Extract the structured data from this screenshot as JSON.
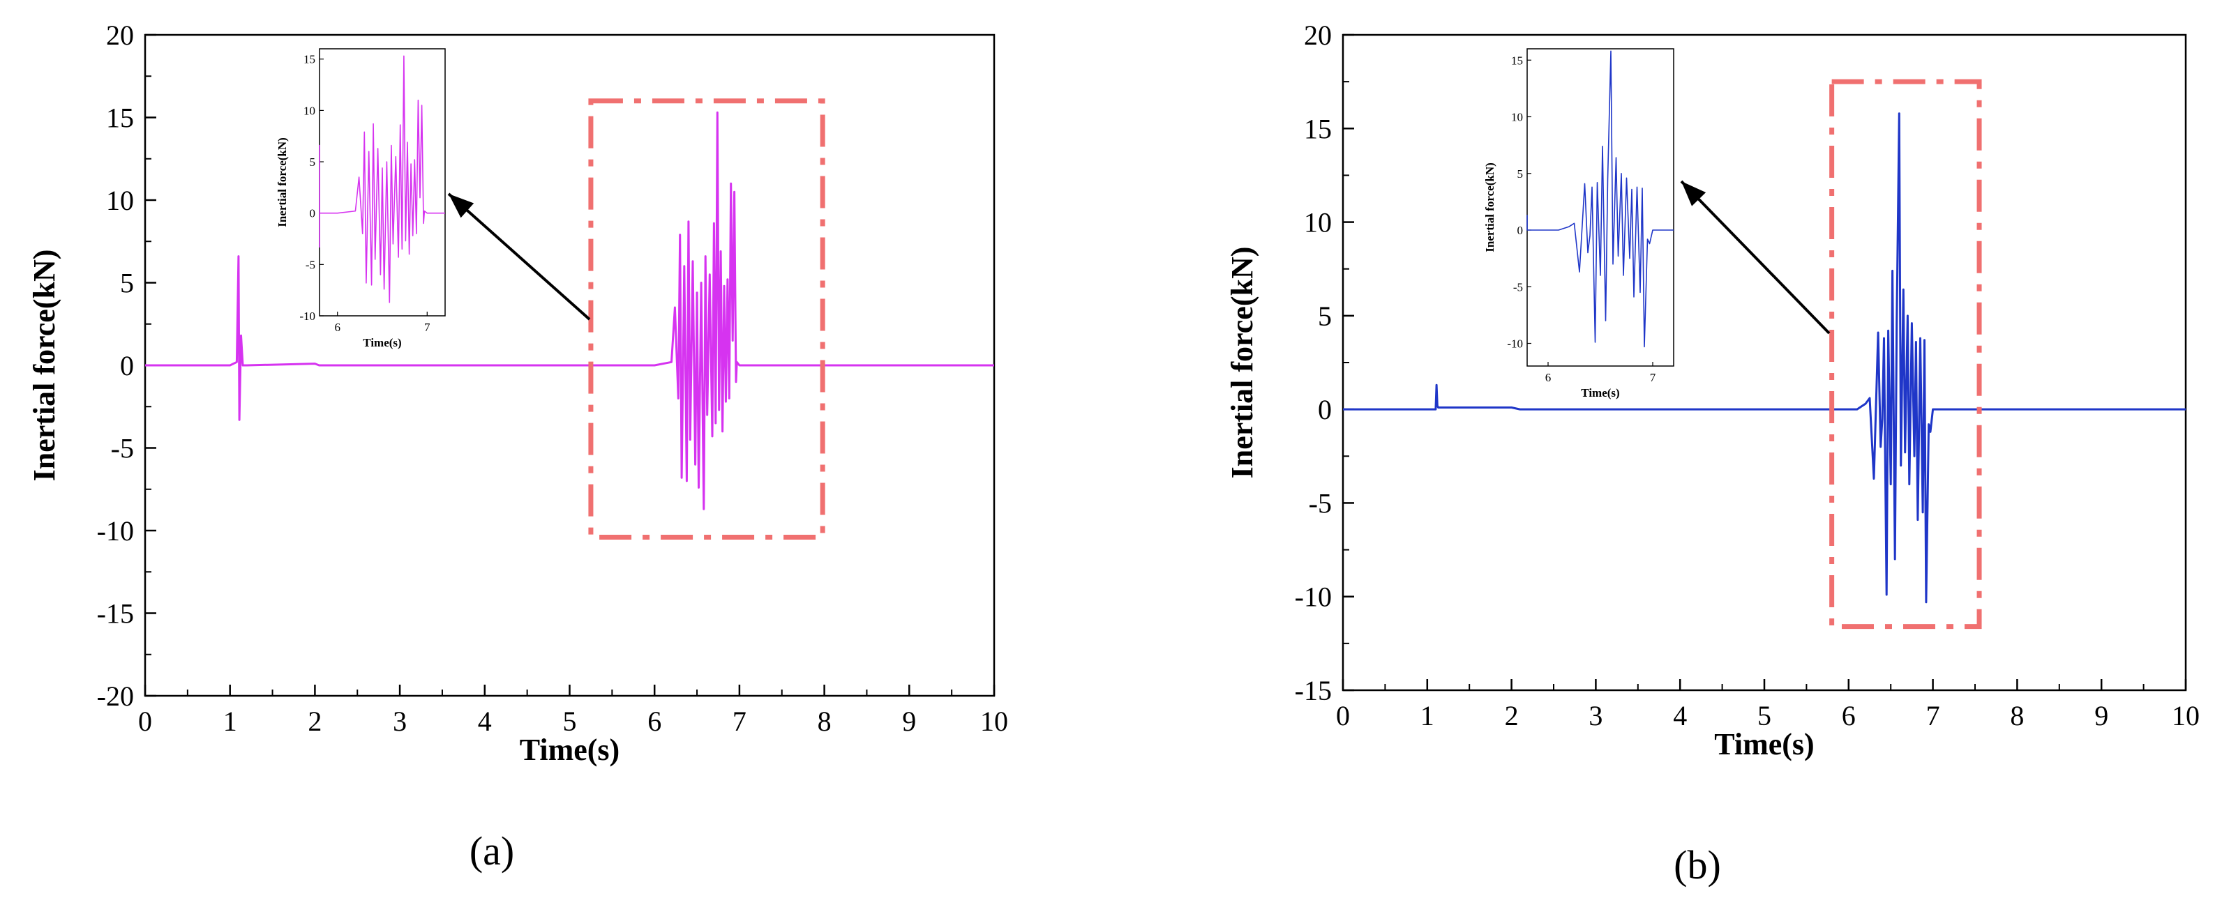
{
  "chart_data": [
    {
      "type": "line",
      "panel_label": "(a)",
      "xlabel": "Time(s)",
      "ylabel": "Inertial force(kN)",
      "xlim": [
        0,
        10
      ],
      "ylim": [
        -20,
        20
      ],
      "x_ticks": [
        0,
        1,
        2,
        3,
        4,
        5,
        6,
        7,
        8,
        9,
        10
      ],
      "y_ticks": [
        -20,
        -15,
        -10,
        -5,
        0,
        5,
        10,
        15,
        20
      ],
      "color": "#d633f0",
      "series": [
        {
          "x": [
            0,
            1.0,
            1.08,
            1.1,
            1.11,
            1.13,
            1.15,
            1.2,
            2.0,
            2.05,
            2.2,
            6.0,
            6.2,
            6.24,
            6.28,
            6.3,
            6.32,
            6.35,
            6.38,
            6.4,
            6.42,
            6.45,
            6.48,
            6.5,
            6.52,
            6.55,
            6.58,
            6.6,
            6.62,
            6.65,
            6.68,
            6.7,
            6.72,
            6.74,
            6.76,
            6.78,
            6.8,
            6.82,
            6.84,
            6.86,
            6.88,
            6.9,
            6.92,
            6.94,
            6.96,
            6.97,
            7.0,
            10
          ],
          "y": [
            0,
            0,
            0.2,
            6.6,
            -3.3,
            1.8,
            0,
            0,
            0.1,
            0,
            0,
            0,
            0.2,
            3.5,
            -2.0,
            7.9,
            -6.8,
            6.0,
            -7.0,
            8.7,
            -4.5,
            6.3,
            -6.0,
            4.4,
            -7.4,
            5.0,
            -8.7,
            6.6,
            -3.0,
            5.5,
            -4.3,
            8.6,
            -3.5,
            15.3,
            -2.7,
            6.9,
            -4.0,
            4.8,
            -2.2,
            5.2,
            -2.0,
            11.0,
            1.5,
            10.5,
            -1.0,
            0.2,
            0,
            0
          ]
        }
      ],
      "annotation": "dash-dot highlight box around 6–7 s burst with arrow to zoomed inset",
      "inset": {
        "ylabel": "Inertial force(kN)",
        "xlabel": "Time(s)",
        "xlim": [
          5.8,
          7.2
        ],
        "ylim": [
          -10,
          16
        ],
        "x_ticks": [
          6,
          7
        ],
        "y_ticks": [
          -10,
          -5,
          0,
          5,
          10,
          15
        ]
      }
    },
    {
      "type": "line",
      "panel_label": "(b)",
      "xlabel": "Time(s)",
      "ylabel": "Inertial force(kN)",
      "xlim": [
        0,
        10
      ],
      "ylim": [
        -15,
        20
      ],
      "x_ticks": [
        0,
        1,
        2,
        3,
        4,
        5,
        6,
        7,
        8,
        9,
        10
      ],
      "y_ticks": [
        -15,
        -10,
        -5,
        0,
        5,
        10,
        15,
        20
      ],
      "color": "#1f36c8",
      "series": [
        {
          "x": [
            0,
            1.1,
            1.11,
            1.12,
            1.13,
            1.2,
            2.0,
            2.1,
            2.2,
            6.1,
            6.2,
            6.25,
            6.3,
            6.35,
            6.38,
            6.4,
            6.42,
            6.45,
            6.47,
            6.5,
            6.52,
            6.55,
            6.57,
            6.6,
            6.62,
            6.65,
            6.67,
            6.7,
            6.72,
            6.75,
            6.78,
            6.8,
            6.82,
            6.85,
            6.88,
            6.9,
            6.92,
            6.95,
            6.97,
            7.0,
            10
          ],
          "y": [
            0,
            0,
            1.3,
            0.2,
            0.1,
            0.1,
            0.1,
            0,
            0,
            0,
            0.3,
            0.6,
            -3.7,
            4.1,
            -2.0,
            -0.5,
            3.8,
            -9.9,
            4.2,
            -4.0,
            7.4,
            -8.0,
            4.5,
            15.8,
            -3.0,
            6.4,
            -2.3,
            5.0,
            -4.0,
            4.6,
            -2.5,
            3.6,
            -5.9,
            3.8,
            -5.5,
            3.7,
            -10.3,
            -0.8,
            -1.2,
            0,
            0
          ]
        }
      ],
      "annotation": "dash-dot highlight box around 6–7 s burst with arrow to zoomed inset",
      "inset": {
        "ylabel": "Inertial force(kN)",
        "xlabel": "Time(s)",
        "xlim": [
          5.8,
          7.2
        ],
        "ylim": [
          -12,
          16
        ],
        "x_ticks": [
          6,
          7
        ],
        "y_ticks": [
          -10,
          -5,
          0,
          5,
          10,
          15
        ]
      }
    }
  ]
}
